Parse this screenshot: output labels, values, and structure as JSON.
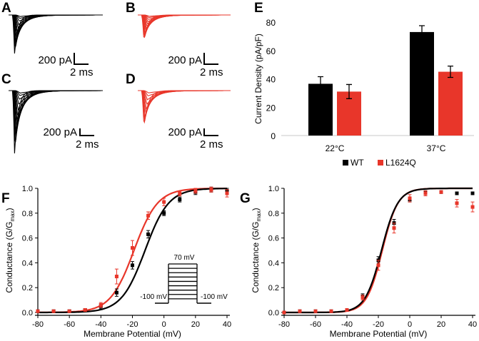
{
  "colors": {
    "wt": "#000000",
    "mutant": "#e8362a",
    "axis": "#000000"
  },
  "panels": {
    "A": {
      "label": "A",
      "scale_current": "200 pA",
      "scale_time": "2 ms",
      "series": "WT",
      "temperature": "22°C",
      "peak_amplitudes": [
        0.04,
        0.09,
        0.16,
        0.25,
        0.35,
        0.45,
        0.55,
        0.65,
        0.75,
        0.85,
        0.93,
        1.0
      ]
    },
    "B": {
      "label": "B",
      "scale_current": "200 pA",
      "scale_time": "2 ms",
      "series": "L1624Q",
      "temperature": "22°C",
      "peak_amplitudes": [
        0.05,
        0.1,
        0.17,
        0.25,
        0.33,
        0.42,
        0.51,
        0.6,
        0.69,
        0.78,
        0.86,
        0.93
      ]
    },
    "C": {
      "label": "C",
      "scale_current": "200 pA",
      "scale_time": "2 ms",
      "series": "WT",
      "temperature": "37°C",
      "peak_amplitudes": [
        0.04,
        0.08,
        0.14,
        0.22,
        0.32,
        0.42,
        0.52,
        0.62,
        0.72,
        0.82,
        0.92,
        1.0
      ]
    },
    "D": {
      "label": "D",
      "scale_current": "200 pA",
      "scale_time": "2 ms",
      "series": "L1624Q",
      "temperature": "37°C",
      "peak_amplitudes": [
        0.06,
        0.14,
        0.24,
        0.36,
        0.48,
        0.6,
        0.72,
        0.83,
        0.92
      ]
    }
  },
  "chart_data": [
    {
      "panel": "E",
      "label": "E",
      "type": "bar",
      "title": "",
      "ylabel": "Current Density (pA/pF)",
      "xlabel": "",
      "ylim": [
        0,
        80
      ],
      "yticks": [
        0,
        20,
        40,
        60,
        80
      ],
      "categories": [
        "22°C",
        "37°C"
      ],
      "series": [
        {
          "name": "WT",
          "color": "#000000",
          "values": [
            36.5,
            73.0
          ],
          "errors": [
            5.0,
            4.5
          ]
        },
        {
          "name": "L1624Q",
          "color": "#e8362a",
          "values": [
            31.0,
            45.0
          ],
          "errors": [
            5.0,
            4.0
          ]
        }
      ],
      "legend": [
        "WT",
        "L1624Q"
      ],
      "legend_position": "bottom"
    },
    {
      "panel": "F",
      "label": "F",
      "type": "scatter",
      "xlabel": "Membrane Potential (mV)",
      "ylabel_main": "Conductance (G/G",
      "ylabel_sub": "max",
      "ylabel_close": ")",
      "xlim": [
        -80,
        40
      ],
      "ylim": [
        0,
        1
      ],
      "xticks": [
        -80,
        -60,
        -40,
        -20,
        0,
        20,
        40
      ],
      "yticks": [
        0.0,
        0.2,
        0.4,
        0.6,
        0.8,
        1.0
      ],
      "ytick_labels": [
        "0.0",
        "0.2",
        "0.4",
        "0.6",
        "0.8",
        "1.0"
      ],
      "series": [
        {
          "name": "WT",
          "color": "#000000",
          "fit_v_half": -12,
          "fit_k": 7.5,
          "x": [
            -80,
            -70,
            -60,
            -50,
            -40,
            -30,
            -20,
            -10,
            0,
            10,
            20,
            30,
            40
          ],
          "y": [
            0.01,
            0.01,
            0.01,
            0.02,
            0.05,
            0.16,
            0.38,
            0.63,
            0.8,
            0.91,
            0.97,
            0.99,
            0.98
          ],
          "err": [
            0.01,
            0.01,
            0.01,
            0.01,
            0.02,
            0.03,
            0.03,
            0.03,
            0.02,
            0.02,
            0.02,
            0.02,
            0.02
          ]
        },
        {
          "name": "L1624Q",
          "color": "#e8362a",
          "fit_v_half": -19,
          "fit_k": 7.5,
          "x": [
            -80,
            -70,
            -60,
            -50,
            -40,
            -30,
            -20,
            -10,
            0,
            10,
            20,
            30,
            40
          ],
          "y": [
            0.01,
            0.01,
            0.01,
            0.02,
            0.06,
            0.29,
            0.52,
            0.78,
            0.89,
            0.96,
            0.98,
            0.99,
            0.96
          ],
          "err": [
            0.01,
            0.01,
            0.01,
            0.01,
            0.02,
            0.06,
            0.06,
            0.03,
            0.03,
            0.02,
            0.02,
            0.02,
            0.03
          ]
        }
      ],
      "inset": {
        "top_label": "70 mV",
        "left_label": "-100 mV",
        "right_label": "-100 mV",
        "steps": 9
      }
    },
    {
      "panel": "G",
      "label": "G",
      "type": "scatter",
      "xlabel": "Membrane Potential (mV)",
      "ylabel_main": "Conductance (G/G",
      "ylabel_sub": "max",
      "ylabel_close": ")",
      "xlim": [
        -80,
        40
      ],
      "ylim": [
        0,
        1
      ],
      "xticks": [
        -80,
        -60,
        -40,
        -20,
        0,
        20,
        40
      ],
      "yticks": [
        0.0,
        0.2,
        0.4,
        0.6,
        0.8,
        1.0
      ],
      "ytick_labels": [
        "0.0",
        "0.2",
        "0.4",
        "0.6",
        "0.8",
        "1.0"
      ],
      "series": [
        {
          "name": "WT",
          "color": "#000000",
          "fit_v_half": -18,
          "fit_k": 5.2,
          "x": [
            -80,
            -70,
            -60,
            -50,
            -40,
            -30,
            -20,
            -10,
            0,
            10,
            20,
            30,
            40
          ],
          "y": [
            0.0,
            0.01,
            0.01,
            0.01,
            0.02,
            0.13,
            0.42,
            0.72,
            0.91,
            0.97,
            0.97,
            0.96,
            0.96
          ],
          "err": [
            0.01,
            0.01,
            0.01,
            0.01,
            0.01,
            0.02,
            0.03,
            0.03,
            0.02,
            0.01,
            0.01,
            0.01,
            0.01
          ]
        },
        {
          "name": "L1624Q",
          "color": "#e8362a",
          "fit_v_half": -17.5,
          "fit_k": 5.0,
          "x": [
            -80,
            -70,
            -60,
            -50,
            -40,
            -30,
            -20,
            -10,
            0,
            10,
            20,
            30,
            40
          ],
          "y": [
            0.0,
            0.01,
            0.01,
            0.01,
            0.02,
            0.12,
            0.38,
            0.68,
            0.92,
            0.96,
            0.97,
            0.88,
            0.85
          ],
          "err": [
            0.01,
            0.01,
            0.01,
            0.01,
            0.01,
            0.02,
            0.04,
            0.04,
            0.03,
            0.02,
            0.01,
            0.03,
            0.04
          ]
        }
      ]
    }
  ]
}
